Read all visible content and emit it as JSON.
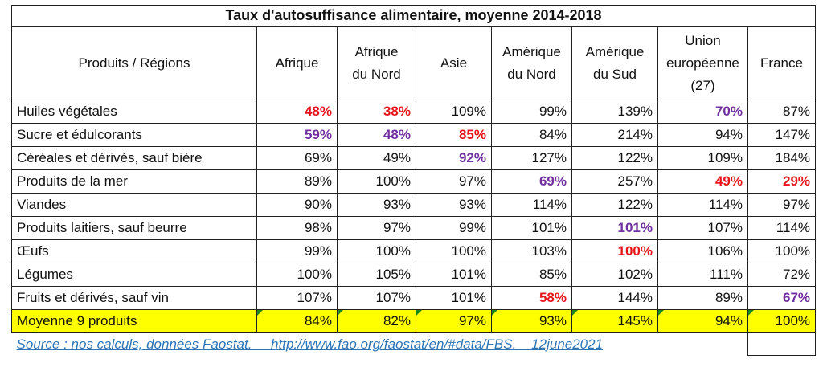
{
  "title": "Taux d'autosuffisance alimentaire, moyenne 2014-2018",
  "header": {
    "products_regions": "Produits / Régions",
    "cols": [
      {
        "lines": [
          "Afrique"
        ]
      },
      {
        "lines": [
          "Afrique",
          "du Nord"
        ]
      },
      {
        "lines": [
          "Asie"
        ]
      },
      {
        "lines": [
          "Amérique",
          "du Nord"
        ]
      },
      {
        "lines": [
          "Amérique",
          "du Sud"
        ]
      },
      {
        "lines": [
          "Union",
          "européenne",
          "(27)"
        ]
      },
      {
        "lines": [
          "France"
        ]
      }
    ]
  },
  "rows": [
    {
      "label": "Huiles végétales",
      "cells": [
        {
          "v": "48%",
          "c": "red"
        },
        {
          "v": "38%",
          "c": "red"
        },
        {
          "v": "109%"
        },
        {
          "v": "99%"
        },
        {
          "v": "139%"
        },
        {
          "v": "70%",
          "c": "purple"
        },
        {
          "v": "87%"
        }
      ]
    },
    {
      "label": "Sucre et édulcorants",
      "cells": [
        {
          "v": "59%",
          "c": "purple"
        },
        {
          "v": "48%",
          "c": "purple"
        },
        {
          "v": "85%",
          "c": "red"
        },
        {
          "v": "84%"
        },
        {
          "v": "214%"
        },
        {
          "v": "94%"
        },
        {
          "v": "147%"
        }
      ]
    },
    {
      "label": "Céréales et dérivés, sauf bière",
      "cells": [
        {
          "v": "69%"
        },
        {
          "v": "49%"
        },
        {
          "v": "92%",
          "c": "purple"
        },
        {
          "v": "127%"
        },
        {
          "v": "122%"
        },
        {
          "v": "109%"
        },
        {
          "v": "184%"
        }
      ]
    },
    {
      "label": "Produits de la mer",
      "cells": [
        {
          "v": "89%"
        },
        {
          "v": "100%"
        },
        {
          "v": "97%"
        },
        {
          "v": "69%",
          "c": "purple"
        },
        {
          "v": "257%"
        },
        {
          "v": "49%",
          "c": "red"
        },
        {
          "v": "29%",
          "c": "red"
        }
      ]
    },
    {
      "label": "Viandes",
      "cells": [
        {
          "v": "90%"
        },
        {
          "v": "93%"
        },
        {
          "v": "93%"
        },
        {
          "v": "114%"
        },
        {
          "v": "122%"
        },
        {
          "v": "114%"
        },
        {
          "v": "97%"
        }
      ]
    },
    {
      "label": "Produits laitiers, sauf beurre",
      "cells": [
        {
          "v": "98%"
        },
        {
          "v": "97%"
        },
        {
          "v": "99%"
        },
        {
          "v": "101%"
        },
        {
          "v": "101%",
          "c": "purple"
        },
        {
          "v": "107%"
        },
        {
          "v": "114%"
        }
      ]
    },
    {
      "label": "Œufs",
      "cells": [
        {
          "v": "99%"
        },
        {
          "v": "100%"
        },
        {
          "v": "100%"
        },
        {
          "v": "103%"
        },
        {
          "v": "100%",
          "c": "red"
        },
        {
          "v": "106%"
        },
        {
          "v": "100%"
        }
      ]
    },
    {
      "label": "Légumes",
      "cells": [
        {
          "v": "100%"
        },
        {
          "v": "105%"
        },
        {
          "v": "101%"
        },
        {
          "v": "85%"
        },
        {
          "v": "102%"
        },
        {
          "v": "111%"
        },
        {
          "v": "72%"
        }
      ]
    },
    {
      "label": "Fruits et dérivés, sauf vin",
      "cells": [
        {
          "v": "107%"
        },
        {
          "v": "107%"
        },
        {
          "v": "101%"
        },
        {
          "v": "58%",
          "c": "red"
        },
        {
          "v": "144%"
        },
        {
          "v": "89%"
        },
        {
          "v": "67%",
          "c": "purple"
        }
      ]
    }
  ],
  "average": {
    "label": "Moyenne 9 produits",
    "cells": [
      "84%",
      "82%",
      "97%",
      "93%",
      "145%",
      "94%",
      "100%"
    ]
  },
  "source": "Source : nos calculs, données Faostat.     http://www.fao.org/faostat/en/#data/FBS.    12june2021",
  "colors": {
    "red": "#e8141c",
    "purple": "#7030a0",
    "highlight": "#ffff00",
    "link": "#2e75b6"
  }
}
